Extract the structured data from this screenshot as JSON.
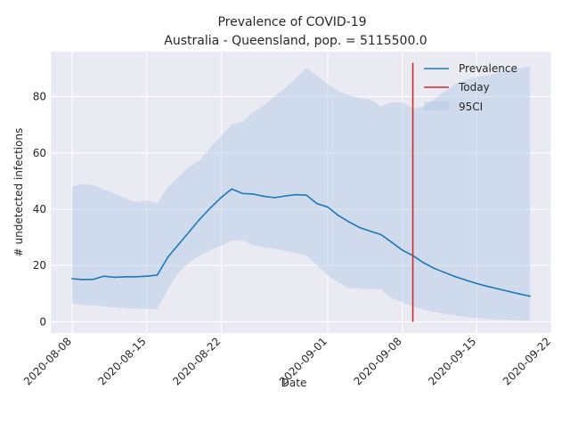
{
  "chart_data": {
    "type": "line",
    "title": "Prevalence of COVID-19",
    "subtitle": "Australia - Queensland, pop. = 5115500.0",
    "xlabel": "Date",
    "ylabel": "# undetected infections",
    "xlim": [
      "2020-08-06",
      "2020-09-22"
    ],
    "ylim": [
      -4,
      96
    ],
    "grid": true,
    "legend_position": "top-right",
    "x_ticks": [
      "2020-08-08",
      "2020-08-15",
      "2020-08-22",
      "2020-09-01",
      "2020-09-08",
      "2020-09-15",
      "2020-09-22"
    ],
    "y_ticks": [
      0,
      20,
      40,
      60,
      80
    ],
    "x": [
      "2020-08-08",
      "2020-08-09",
      "2020-08-10",
      "2020-08-11",
      "2020-08-12",
      "2020-08-13",
      "2020-08-14",
      "2020-08-15",
      "2020-08-16",
      "2020-08-17",
      "2020-08-18",
      "2020-08-19",
      "2020-08-20",
      "2020-08-21",
      "2020-08-22",
      "2020-08-23",
      "2020-08-24",
      "2020-08-25",
      "2020-08-26",
      "2020-08-27",
      "2020-08-28",
      "2020-08-29",
      "2020-08-30",
      "2020-08-31",
      "2020-09-01",
      "2020-09-02",
      "2020-09-03",
      "2020-09-04",
      "2020-09-05",
      "2020-09-06",
      "2020-09-07",
      "2020-09-08",
      "2020-09-09",
      "2020-09-10",
      "2020-09-11",
      "2020-09-12",
      "2020-09-13",
      "2020-09-14",
      "2020-09-15",
      "2020-09-16",
      "2020-09-17",
      "2020-09-18",
      "2020-09-19",
      "2020-09-20"
    ],
    "series": [
      {
        "name": "Prevalence",
        "color": "#1f77b4",
        "values": [
          15.3,
          15.0,
          15.1,
          16.2,
          15.8,
          16.0,
          16.0,
          16.2,
          16.6,
          23.0,
          27.5,
          32.0,
          36.5,
          40.5,
          44.2,
          47.2,
          45.6,
          45.4,
          44.6,
          44.1,
          44.7,
          45.2,
          45.0,
          42.0,
          40.8,
          37.8,
          35.5,
          33.5,
          32.2,
          31.0,
          28.3,
          25.5,
          23.5,
          21.0,
          19.0,
          17.5,
          16.0,
          14.8,
          13.6,
          12.6,
          11.7,
          10.8,
          9.9,
          9.1
        ]
      },
      {
        "name": "95CI",
        "color": "#b0c8e4",
        "lower": [
          6.5,
          6.0,
          5.8,
          5.5,
          5.1,
          4.8,
          4.7,
          4.6,
          4.5,
          11.5,
          17.5,
          21.0,
          23.5,
          25.5,
          27.0,
          28.8,
          29.0,
          27.2,
          26.5,
          26.0,
          25.2,
          24.5,
          23.5,
          20.0,
          16.5,
          14.0,
          12.0,
          11.8,
          11.6,
          11.5,
          8.5,
          7.0,
          5.5,
          4.3,
          3.5,
          2.8,
          2.2,
          1.7,
          1.3,
          1.0,
          0.8,
          0.6,
          0.5,
          0.3
        ],
        "upper": [
          48.0,
          49.0,
          48.5,
          47.0,
          45.5,
          44.0,
          42.5,
          43.2,
          42.0,
          48.0,
          51.5,
          55.0,
          57.5,
          62.0,
          66.0,
          70.2,
          71.0,
          74.5,
          77.0,
          80.0,
          83.0,
          86.5,
          90.2,
          87.5,
          84.5,
          82.0,
          80.5,
          79.5,
          79.0,
          76.5,
          78.0,
          78.0,
          75.8,
          76.5,
          79.0,
          82.0,
          84.5,
          86.0,
          87.0,
          87.5,
          88.5,
          89.5,
          90.0,
          90.8
        ]
      }
    ],
    "today": {
      "name": "Today",
      "x": "2020-09-09",
      "y_range": [
        0,
        92
      ],
      "color": "#d62728"
    }
  }
}
